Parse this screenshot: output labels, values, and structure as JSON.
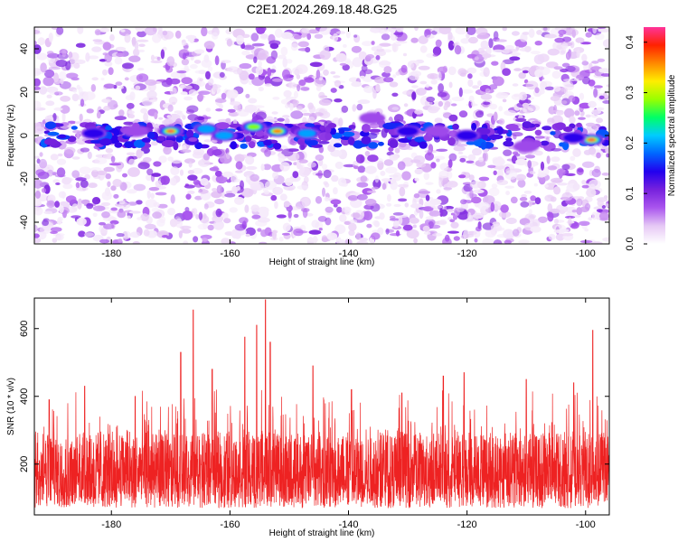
{
  "title": "C2E1.2024.269.18.48.G25",
  "colors": {
    "snr_line": "#ee2222",
    "axis": "#000000",
    "colorbar": [
      "#ffffff",
      "#e6c8f5",
      "#aa55ee",
      "#7722dd",
      "#2200ee",
      "#0066ff",
      "#00ccff",
      "#00ff66",
      "#99ff00",
      "#ffee00",
      "#ff8800",
      "#ff2200",
      "#ff3399"
    ]
  },
  "chart_data": [
    {
      "type": "heatmap",
      "title": "",
      "xlabel": "Height of straight line (km)",
      "ylabel": "Frequency (Hz)",
      "xlim": [
        -193,
        -96
      ],
      "ylim": [
        -50,
        50
      ],
      "xticks": [
        -180,
        -160,
        -140,
        -120,
        -100
      ],
      "yticks": [
        40,
        20,
        0,
        -20,
        -40
      ],
      "xtick_labels": [
        "-180",
        "-160",
        "-140",
        "-120",
        "-100"
      ],
      "ytick_labels": [
        "40",
        "20",
        "0",
        "-20",
        "-40"
      ],
      "colorbar": {
        "label": "Normalized spectral amplitude",
        "range": [
          0.0,
          0.43
        ],
        "ticks": [
          0.0,
          0.1,
          0.2,
          0.3,
          0.4
        ],
        "tick_labels": [
          "0.0",
          "0.1",
          "0.2",
          "0.3",
          "0.4"
        ]
      },
      "hotspots": [
        {
          "x": -170,
          "y": 2,
          "v": 0.42
        },
        {
          "x": -152,
          "y": 2,
          "v": 0.4
        },
        {
          "x": -99,
          "y": -2,
          "v": 0.42
        },
        {
          "x": -156,
          "y": 4,
          "v": 0.28
        },
        {
          "x": -161,
          "y": 0,
          "v": 0.25
        },
        {
          "x": -164,
          "y": 3,
          "v": 0.22
        },
        {
          "x": -147,
          "y": 1,
          "v": 0.22
        },
        {
          "x": -120,
          "y": 0,
          "v": 0.18
        },
        {
          "x": -130,
          "y": 2,
          "v": 0.16
        },
        {
          "x": -183,
          "y": 1,
          "v": 0.14
        },
        {
          "x": -102,
          "y": -1,
          "v": 0.16
        },
        {
          "x": -110,
          "y": -5,
          "v": 0.1
        },
        {
          "x": -125,
          "y": 2,
          "v": 0.12
        },
        {
          "x": -136,
          "y": 8,
          "v": 0.1
        },
        {
          "x": -176,
          "y": 2,
          "v": 0.1
        }
      ]
    },
    {
      "type": "line",
      "title": "",
      "xlabel": "Height of straight line (km)",
      "ylabel": "SNR (10 * v/v)",
      "xlim": [
        -193,
        -96
      ],
      "ylim": [
        50,
        690
      ],
      "xticks": [
        -180,
        -160,
        -140,
        -120,
        -100
      ],
      "yticks": [
        200,
        400,
        600
      ],
      "xtick_labels": [
        "-180",
        "-160",
        "-140",
        "-120",
        "-100"
      ],
      "ytick_labels": [
        "200",
        "400",
        "600"
      ],
      "series": [
        {
          "noise_band": {
            "typical_low": 70,
            "typical_high": 290,
            "median": 170
          },
          "peaks": [
            {
              "x": -154.0,
              "y": 685
            },
            {
              "x": -166.2,
              "y": 655
            },
            {
              "x": -155.5,
              "y": 610
            },
            {
              "x": -157.5,
              "y": 575
            },
            {
              "x": -98.8,
              "y": 595
            },
            {
              "x": -153.2,
              "y": 560
            },
            {
              "x": -168.3,
              "y": 530
            },
            {
              "x": -146.0,
              "y": 490
            },
            {
              "x": -163.0,
              "y": 480
            },
            {
              "x": -124.0,
              "y": 460
            },
            {
              "x": -120.5,
              "y": 470
            },
            {
              "x": -110.0,
              "y": 450
            },
            {
              "x": -102.0,
              "y": 440
            },
            {
              "x": -184.5,
              "y": 430
            },
            {
              "x": -139.5,
              "y": 420
            },
            {
              "x": -131.0,
              "y": 410
            },
            {
              "x": -176.0,
              "y": 400
            },
            {
              "x": -190.5,
              "y": 390
            }
          ]
        }
      ]
    }
  ]
}
